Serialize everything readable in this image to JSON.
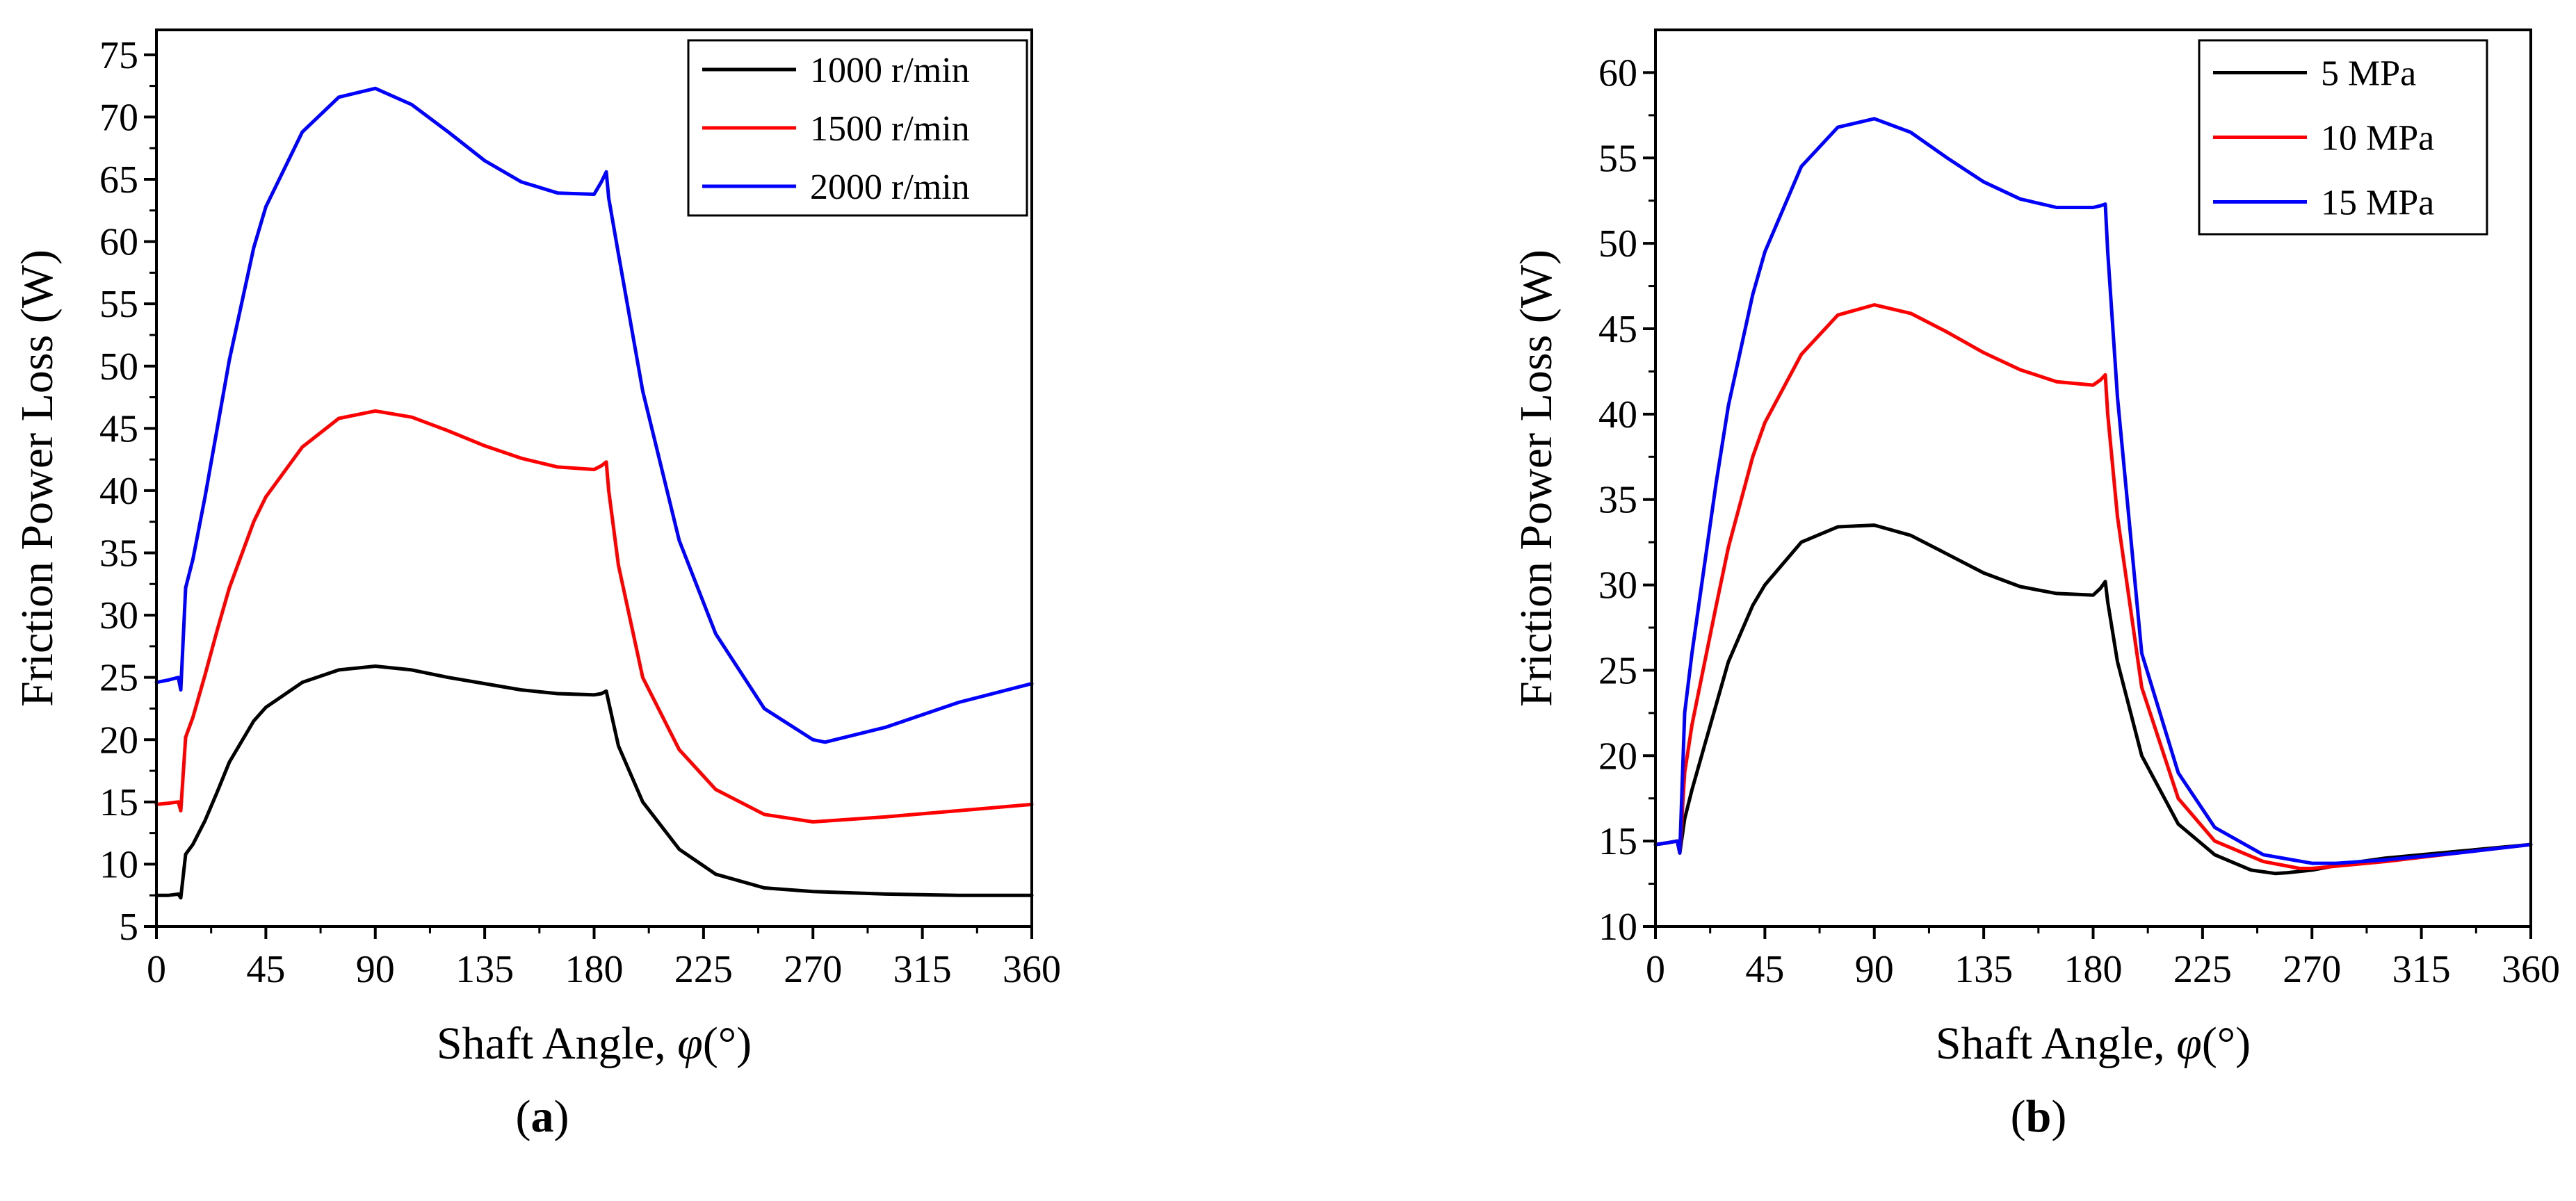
{
  "chart_data": [
    {
      "type": "line",
      "panel_label": "(a)",
      "caption_letter": "a",
      "xlabel": "Shaft Angle, ",
      "xlabel_symbol": "φ",
      "xlabel_unit": "(°)",
      "ylabel": "Friction Power Loss (W)",
      "xlim": [
        0,
        360
      ],
      "ylim": [
        5,
        77
      ],
      "xticks": [
        0,
        45,
        90,
        135,
        180,
        225,
        270,
        315,
        360
      ],
      "yticks": [
        5,
        10,
        15,
        20,
        25,
        30,
        35,
        40,
        45,
        50,
        55,
        60,
        65,
        70,
        75
      ],
      "legend_position": "top-right",
      "series": [
        {
          "name": "1000 r/min",
          "color": "#000000",
          "x": [
            0,
            5,
            9,
            10,
            12,
            15,
            20,
            25,
            30,
            40,
            45,
            60,
            75,
            90,
            105,
            120,
            135,
            150,
            165,
            180,
            183,
            185,
            186,
            190,
            200,
            215,
            230,
            250,
            270,
            300,
            330,
            360
          ],
          "y": [
            7.5,
            7.5,
            7.6,
            7.3,
            10.8,
            11.6,
            13.5,
            15.8,
            18.2,
            21.5,
            22.6,
            24.6,
            25.6,
            25.9,
            25.6,
            25.0,
            24.5,
            24.0,
            23.7,
            23.6,
            23.7,
            23.9,
            23.0,
            19.5,
            15.0,
            11.2,
            9.2,
            8.1,
            7.8,
            7.6,
            7.5,
            7.5
          ]
        },
        {
          "name": "1500 r/min",
          "color": "#ff0000",
          "x": [
            0,
            5,
            9,
            10,
            12,
            15,
            20,
            25,
            30,
            40,
            45,
            60,
            75,
            90,
            105,
            120,
            135,
            150,
            165,
            180,
            183,
            185,
            186,
            190,
            200,
            215,
            230,
            250,
            270,
            300,
            330,
            360
          ],
          "y": [
            14.8,
            14.9,
            15.0,
            14.3,
            20.2,
            21.8,
            25.2,
            28.8,
            32.2,
            37.5,
            39.5,
            43.5,
            45.8,
            46.4,
            45.9,
            44.8,
            43.6,
            42.6,
            41.9,
            41.7,
            42.0,
            42.3,
            40.0,
            34.0,
            25.0,
            19.2,
            16.0,
            14.0,
            13.4,
            13.8,
            14.3,
            14.8
          ]
        },
        {
          "name": "2000 r/min",
          "color": "#0000ff",
          "x": [
            0,
            5,
            9,
            10,
            12,
            15,
            20,
            25,
            30,
            40,
            45,
            60,
            75,
            90,
            105,
            120,
            135,
            150,
            165,
            180,
            183,
            185,
            186,
            190,
            200,
            215,
            230,
            250,
            270,
            275,
            300,
            330,
            360
          ],
          "y": [
            24.6,
            24.8,
            25.0,
            24.0,
            32.2,
            34.5,
            39.5,
            45.0,
            50.5,
            59.5,
            62.8,
            68.8,
            71.6,
            72.3,
            71.0,
            68.8,
            66.5,
            64.8,
            63.9,
            63.8,
            64.8,
            65.6,
            63.5,
            59.0,
            48.0,
            36.0,
            28.5,
            22.5,
            20.0,
            19.8,
            21.0,
            23.0,
            24.5
          ]
        }
      ]
    },
    {
      "type": "line",
      "panel_label": "(b)",
      "caption_letter": "b",
      "xlabel": "Shaft Angle, ",
      "xlabel_symbol": "φ",
      "xlabel_unit": "(°)",
      "ylabel": "Friction Power Loss (W)",
      "xlim": [
        0,
        360
      ],
      "ylim": [
        10,
        62.5
      ],
      "xticks": [
        0,
        45,
        90,
        135,
        180,
        225,
        270,
        315,
        360
      ],
      "yticks": [
        10,
        15,
        20,
        25,
        30,
        35,
        40,
        45,
        50,
        55,
        60
      ],
      "legend_position": "top-right",
      "series": [
        {
          "name": "5 MPa",
          "color": "#000000",
          "x": [
            0,
            5,
            9,
            10,
            12,
            15,
            20,
            25,
            30,
            40,
            45,
            60,
            75,
            90,
            105,
            120,
            135,
            150,
            165,
            180,
            183,
            185,
            186,
            190,
            200,
            215,
            230,
            245,
            255,
            260,
            270,
            285,
            300,
            330,
            360
          ],
          "y": [
            14.8,
            14.9,
            15.0,
            14.3,
            16.3,
            18.0,
            20.5,
            23.0,
            25.5,
            28.8,
            30.0,
            32.5,
            33.4,
            33.5,
            32.9,
            31.8,
            30.7,
            29.9,
            29.5,
            29.4,
            29.8,
            30.2,
            29.0,
            25.5,
            20.0,
            16.0,
            14.2,
            13.3,
            13.1,
            13.15,
            13.3,
            13.7,
            14.0,
            14.4,
            14.8
          ]
        },
        {
          "name": "10 MPa",
          "color": "#ff0000",
          "x": [
            0,
            5,
            9,
            10,
            12,
            15,
            20,
            25,
            30,
            40,
            45,
            60,
            75,
            90,
            105,
            120,
            135,
            150,
            165,
            180,
            183,
            185,
            186,
            190,
            200,
            215,
            230,
            250,
            265,
            270,
            300,
            330,
            360
          ],
          "y": [
            14.8,
            14.9,
            15.0,
            14.3,
            19.0,
            21.8,
            25.3,
            28.8,
            32.2,
            37.5,
            39.5,
            43.5,
            45.8,
            46.4,
            45.9,
            44.8,
            43.6,
            42.6,
            41.9,
            41.7,
            42.0,
            42.3,
            40.0,
            34.0,
            24.0,
            17.5,
            15.0,
            13.8,
            13.4,
            13.4,
            13.8,
            14.3,
            14.8
          ]
        },
        {
          "name": "15 MPa",
          "color": "#0000ff",
          "x": [
            0,
            5,
            9,
            10,
            12,
            15,
            20,
            25,
            30,
            40,
            45,
            60,
            75,
            90,
            105,
            120,
            135,
            150,
            165,
            180,
            183,
            185,
            186,
            190,
            200,
            215,
            230,
            250,
            270,
            280,
            300,
            330,
            360
          ],
          "y": [
            14.8,
            14.9,
            15.0,
            14.3,
            22.5,
            26.0,
            31.0,
            36.0,
            40.5,
            47.0,
            49.5,
            54.5,
            56.8,
            57.3,
            56.5,
            55.0,
            53.6,
            52.6,
            52.1,
            52.1,
            52.2,
            52.3,
            49.5,
            41.0,
            26.0,
            19.0,
            15.8,
            14.2,
            13.7,
            13.7,
            13.9,
            14.3,
            14.8
          ]
        }
      ]
    }
  ]
}
